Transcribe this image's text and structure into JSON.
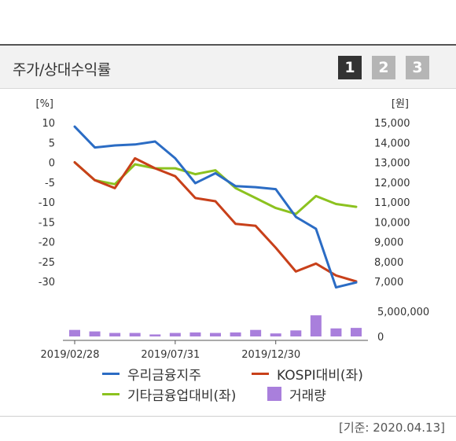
{
  "header": {
    "title": "주가/상대수익률",
    "periods": [
      "1",
      "2",
      "3"
    ],
    "active_period": "1"
  },
  "footer": {
    "basis": "[기준: 2020.04.13]"
  },
  "colors": {
    "woori": "#2b6cc4",
    "kospi": "#c8401a",
    "other": "#8cc21f",
    "volume": "#a97fdc"
  },
  "chart_data": {
    "type": "line",
    "x": [
      "2019-02-28",
      "2019-03-29",
      "2019-04-30",
      "2019-05-31",
      "2019-06-28",
      "2019-07-31",
      "2019-08-30",
      "2019-09-30",
      "2019-10-31",
      "2019-11-29",
      "2019-12-30",
      "2020-01-31",
      "2020-02-28",
      "2020-03-31",
      "2020-04-13"
    ],
    "x_tick_labels": [
      "2019/02/28",
      "2019/07/31",
      "2019/12/30"
    ],
    "left_axis": {
      "unit": "[%]",
      "ticks": [
        10,
        5,
        0,
        -5,
        -10,
        -15,
        -20,
        -25,
        -30
      ],
      "ylim": [
        -30,
        10
      ]
    },
    "right_axis": {
      "unit": "[원]",
      "ticks": [
        "15,000",
        "14,000",
        "13,000",
        "12,000",
        "11,000",
        "10,000",
        "9,000",
        "8,000",
        "7,000"
      ],
      "ylim": [
        7000,
        15000
      ]
    },
    "volume_axis": {
      "ticks": [
        "5,000,000",
        "0"
      ],
      "ylim": [
        0,
        5000000
      ]
    },
    "series": [
      {
        "name": "우리금융지주",
        "axis": "right",
        "values": [
          14800,
          13750,
          13850,
          13900,
          14050,
          13200,
          11950,
          12450,
          11800,
          11750,
          11650,
          10250,
          9650,
          6700,
          6950
        ]
      },
      {
        "name": "KOSPI대비(좌)",
        "axis": "left",
        "values": [
          0,
          -4.5,
          -6.5,
          1,
          -1.5,
          -3.5,
          -9,
          -9.8,
          -15.5,
          -16,
          -21.5,
          -27.5,
          -25.5,
          -28.5,
          -30
        ]
      },
      {
        "name": "기타금융업대비(좌)",
        "axis": "left",
        "values": [
          0,
          -4.5,
          -5.5,
          -0.5,
          -1.5,
          -1.5,
          -3,
          -2,
          -6.5,
          -9,
          -11.5,
          -13,
          -8.5,
          -10.5,
          -11.2
        ]
      },
      {
        "name": "거래량",
        "axis": "volume",
        "type": "bar",
        "values": [
          1300000,
          1000000,
          700000,
          700000,
          400000,
          700000,
          800000,
          700000,
          800000,
          1300000,
          600000,
          1200000,
          4200000,
          1600000,
          1700000
        ]
      }
    ],
    "grid": false
  }
}
